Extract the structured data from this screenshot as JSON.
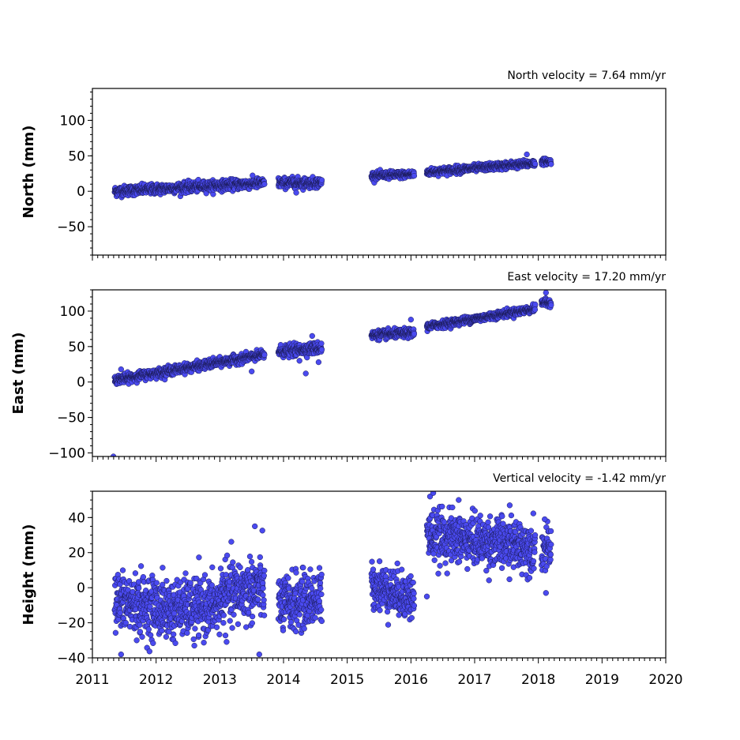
{
  "chart_data": [
    {
      "type": "scatter",
      "title": "North velocity = 7.64 mm/yr",
      "ylabel": "North (mm)",
      "xlim": [
        2011,
        2020
      ],
      "ylim": [
        -90,
        145
      ],
      "yticks": [
        100,
        50,
        0,
        -50
      ],
      "ytick_labels": [
        "100",
        "50",
        "0",
        "−50"
      ],
      "grid": false,
      "series": [
        {
          "segments": [
            {
              "x0": 2011.35,
              "x1": 2013.7,
              "a": 0.0,
              "b": 5.0,
              "noise": 3.5
            },
            {
              "x0": 2013.92,
              "x1": 2014.6,
              "a": 12.0,
              "b": 0.0,
              "noise": 3.5
            },
            {
              "x0": 2015.38,
              "x1": 2016.05,
              "a": 22.0,
              "b": 3.0,
              "noise": 2.5
            },
            {
              "x0": 2016.25,
              "x1": 2017.95,
              "a": 27.0,
              "b": 7.5,
              "noise": 2.5
            },
            {
              "x0": 2018.05,
              "x1": 2018.2,
              "a": 42.0,
              "b": 0.0,
              "noise": 2.0
            }
          ],
          "outliers": [
            [
              2017.82,
              52
            ],
            [
              2014.2,
              -2
            ]
          ]
        }
      ]
    },
    {
      "type": "scatter",
      "title": "East velocity = 17.20 mm/yr",
      "ylabel": "East (mm)",
      "xlim": [
        2011,
        2020
      ],
      "ylim": [
        -105,
        130
      ],
      "yticks": [
        100,
        50,
        0,
        -50,
        -100
      ],
      "ytick_labels": [
        "100",
        "50",
        "0",
        "−50",
        "−100"
      ],
      "grid": false,
      "series": [
        {
          "segments": [
            {
              "x0": 2011.35,
              "x1": 2013.7,
              "a": 3.0,
              "b": 15.0,
              "noise": 3.0
            },
            {
              "x0": 2013.92,
              "x1": 2014.6,
              "a": 43.0,
              "b": 8.0,
              "noise": 4.0
            },
            {
              "x0": 2015.38,
              "x1": 2016.05,
              "a": 66.0,
              "b": 5.0,
              "noise": 3.0
            },
            {
              "x0": 2016.25,
              "x1": 2017.95,
              "a": 78.0,
              "b": 15.0,
              "noise": 2.5
            },
            {
              "x0": 2018.05,
              "x1": 2018.2,
              "a": 112.0,
              "b": 0.0,
              "noise": 2.5
            }
          ],
          "outliers": [
            [
              2011.33,
              -105
            ],
            [
              2011.45,
              18
            ],
            [
              2013.5,
              15
            ],
            [
              2014.35,
              12
            ],
            [
              2014.25,
              30
            ],
            [
              2014.55,
              28
            ],
            [
              2014.45,
              65
            ],
            [
              2016.0,
              88
            ],
            [
              2018.12,
              126
            ]
          ]
        }
      ]
    },
    {
      "type": "scatter",
      "title": "Vertical velocity = -1.42 mm/yr",
      "ylabel": "Height (mm)",
      "xlabel": "",
      "xlim": [
        2011,
        2020
      ],
      "ylim": [
        -40,
        55
      ],
      "yticks": [
        40,
        20,
        0,
        -20,
        -40
      ],
      "ytick_labels": [
        "40",
        "20",
        "0",
        "−20",
        "−40"
      ],
      "xticks": [
        2011,
        2012,
        2013,
        2014,
        2015,
        2016,
        2017,
        2018,
        2019,
        2020
      ],
      "xtick_labels": [
        "2011",
        "2012",
        "2013",
        "2014",
        "2015",
        "2016",
        "2017",
        "2018",
        "2019",
        "2020"
      ],
      "grid": false,
      "series": [
        {
          "segments": [
            {
              "x0": 2011.35,
              "x1": 2012.3,
              "a": -8.0,
              "b": -5.0,
              "noise": 8.5
            },
            {
              "x0": 2012.3,
              "x1": 2013.0,
              "a": -12.0,
              "b": 2.0,
              "noise": 8.0
            },
            {
              "x0": 2013.0,
              "x1": 2013.7,
              "a": -5.0,
              "b": 8.0,
              "noise": 9.0
            },
            {
              "x0": 2013.92,
              "x1": 2014.6,
              "a": -10.0,
              "b": 6.0,
              "noise": 8.0
            },
            {
              "x0": 2015.38,
              "x1": 2016.05,
              "a": 2.0,
              "b": -12.0,
              "noise": 6.5
            },
            {
              "x0": 2016.25,
              "x1": 2017.95,
              "a": 30.0,
              "b": -4.0,
              "noise": 7.0
            },
            {
              "x0": 2018.05,
              "x1": 2018.2,
              "a": 22.0,
              "b": 0.0,
              "noise": 6.0
            }
          ],
          "outliers": [
            [
              2011.45,
              -38
            ],
            [
              2013.55,
              35
            ],
            [
              2013.62,
              -38
            ],
            [
              2012.6,
              -33
            ],
            [
              2016.3,
              52
            ],
            [
              2016.35,
              54
            ],
            [
              2016.75,
              50
            ],
            [
              2017.55,
              47
            ],
            [
              2018.12,
              -3
            ],
            [
              2018.1,
              39
            ],
            [
              2016.25,
              -5
            ]
          ]
        }
      ]
    }
  ]
}
